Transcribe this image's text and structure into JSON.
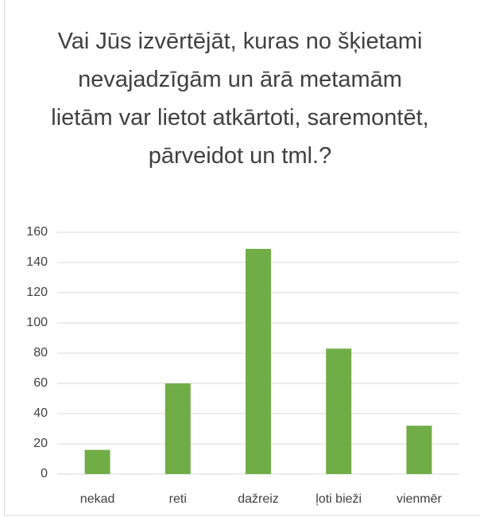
{
  "chart_data": {
    "type": "bar",
    "title": "Vai Jūs izvērtējāt, kuras no šķietami nevajadzīgām un ārā metamām lietām var lietot atkārtoti, saremontēt, pārveidot un tml.?",
    "categories": [
      "nekad",
      "reti",
      "dažreiz",
      "ļoti bieži",
      "vienmēr"
    ],
    "values": [
      16,
      60,
      149,
      83,
      32
    ],
    "color": "#70ad47",
    "ylim": [
      0,
      160
    ],
    "yticks": [
      0,
      20,
      40,
      60,
      80,
      100,
      120,
      140,
      160
    ],
    "grid": true
  }
}
